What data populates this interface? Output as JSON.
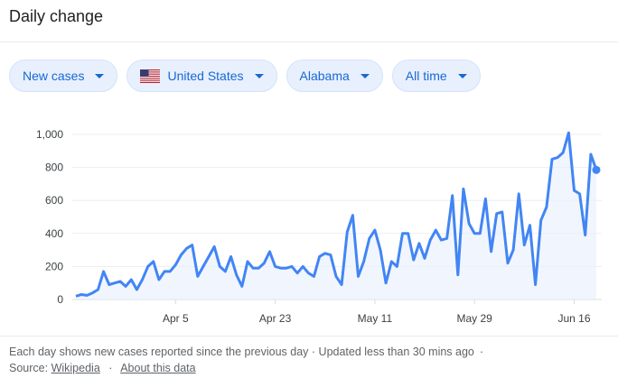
{
  "header": {
    "title": "Daily change"
  },
  "filters": {
    "metric": "New cases",
    "country": "United States",
    "region": "Alabama",
    "range": "All time"
  },
  "colors": {
    "line": "#4285f4",
    "area": "#e8f0fe",
    "chip_bg": "#e8f0fe",
    "chip_text": "#1967d2"
  },
  "chart_data": {
    "type": "line",
    "x_labels": [
      "Apr 5",
      "Apr 23",
      "May 11",
      "May 29",
      "Jun 16"
    ],
    "y_ticks": [
      "0",
      "200",
      "400",
      "600",
      "800",
      "1,000"
    ],
    "ylim": [
      0,
      1000
    ],
    "grid": true,
    "series": [
      {
        "values": [
          20,
          30,
          25,
          40,
          60,
          170,
          90,
          100,
          110,
          80,
          120,
          60,
          120,
          200,
          230,
          120,
          170,
          170,
          210,
          270,
          310,
          330,
          140,
          200,
          260,
          320,
          200,
          170,
          260,
          150,
          80,
          230,
          190,
          190,
          220,
          290,
          200,
          190,
          190,
          200,
          160,
          200,
          160,
          140,
          260,
          280,
          270,
          140,
          90,
          410,
          510,
          140,
          230,
          370,
          420,
          300,
          100,
          230,
          200,
          400,
          400,
          240,
          340,
          250,
          360,
          420,
          360,
          370,
          630,
          150,
          670,
          460,
          400,
          400,
          610,
          290,
          520,
          530,
          220,
          300,
          640,
          330,
          450,
          90,
          480,
          560,
          850,
          860,
          890,
          1010,
          660,
          640,
          390,
          880,
          785
        ]
      }
    ]
  },
  "footer": {
    "line1": "Each day shows new cases reported since the previous day · Updated less than 30 mins ago",
    "line1_sep": "·",
    "source_label": "Source:",
    "source_link": "Wikipedia",
    "sep": "·",
    "about_link": "About this data"
  }
}
